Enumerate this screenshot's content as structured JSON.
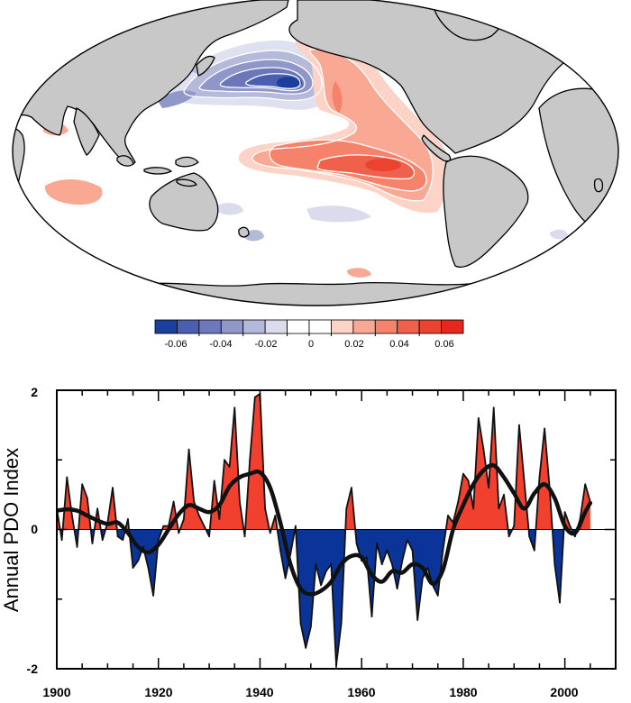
{
  "colors": {
    "positive": "#f2402f",
    "negative": "#0a3497",
    "land": "#c8c8c8",
    "line": "#111111"
  },
  "map": {
    "colorbar": {
      "ticks": [
        "-0.06",
        "-0.04",
        "-0.02",
        "0",
        "0.02",
        "0.04",
        "0.06"
      ],
      "colors": [
        "#1b3f9c",
        "#4b5fb0",
        "#6d79bb",
        "#9098c8",
        "#b4b8da",
        "#dadced",
        "#ffffff",
        "#ffffff",
        "#fcd3c6",
        "#f9a894",
        "#f5836c",
        "#f0614b",
        "#ec4331",
        "#e6271c"
      ]
    }
  },
  "chart_data": [
    {
      "type": "map",
      "title": "",
      "legend": "colorbar below map",
      "range": [
        -0.07,
        0.07
      ]
    },
    {
      "type": "area",
      "title": "",
      "xlabel": "",
      "ylabel": "Annual PDO Index",
      "xlim": [
        1900,
        2010
      ],
      "ylim": [
        -2,
        2
      ],
      "xticks": [
        "1900",
        "1920",
        "1940",
        "1960",
        "1980",
        "2000"
      ],
      "yticks": [
        "-2",
        "0",
        "2"
      ],
      "series": [
        {
          "name": "Annual PDO",
          "x": [
            1900,
            1901,
            1902,
            1903,
            1904,
            1905,
            1906,
            1907,
            1908,
            1909,
            1910,
            1911,
            1912,
            1913,
            1914,
            1915,
            1916,
            1917,
            1918,
            1919,
            1920,
            1921,
            1922,
            1923,
            1924,
            1925,
            1926,
            1927,
            1928,
            1929,
            1930,
            1931,
            1932,
            1933,
            1934,
            1935,
            1936,
            1937,
            1938,
            1939,
            1940,
            1941,
            1942,
            1943,
            1944,
            1945,
            1946,
            1947,
            1948,
            1949,
            1950,
            1951,
            1952,
            1953,
            1954,
            1955,
            1956,
            1957,
            1958,
            1959,
            1960,
            1961,
            1962,
            1963,
            1964,
            1965,
            1966,
            1967,
            1968,
            1969,
            1970,
            1971,
            1972,
            1973,
            1974,
            1975,
            1976,
            1977,
            1978,
            1979,
            1980,
            1981,
            1982,
            1983,
            1984,
            1985,
            1986,
            1987,
            1988,
            1989,
            1990,
            1991,
            1992,
            1993,
            1994,
            1995,
            1996,
            1997,
            1998,
            1999,
            2000,
            2001,
            2002,
            2003,
            2004,
            2005
          ],
          "values": [
            0.3,
            -0.15,
            0.75,
            0.2,
            -0.25,
            0.65,
            0.45,
            -0.2,
            0.3,
            -0.15,
            0.1,
            0.6,
            -0.1,
            -0.15,
            0.15,
            -0.55,
            -0.45,
            -0.25,
            -0.55,
            -0.95,
            -0.15,
            0.05,
            0.05,
            0.4,
            -0.05,
            0.15,
            1.15,
            0.4,
            0.2,
            0.05,
            -0.1,
            0.7,
            0.15,
            1.0,
            0.9,
            1.75,
            0.4,
            -0.1,
            1.0,
            1.9,
            1.95,
            0.3,
            -0.05,
            0.2,
            -0.3,
            -0.7,
            -0.35,
            0.05,
            -1.35,
            -1.7,
            -1.4,
            -0.5,
            -0.8,
            -0.6,
            -0.5,
            -1.95,
            -1.35,
            0.3,
            0.6,
            -0.2,
            -0.45,
            -0.4,
            -1.25,
            -0.2,
            -0.5,
            -0.3,
            -0.5,
            -0.85,
            -0.45,
            -0.15,
            -0.3,
            -1.3,
            -0.7,
            -0.55,
            -0.8,
            -0.95,
            -0.3,
            0.2,
            0.1,
            0.4,
            0.8,
            0.7,
            0.3,
            1.6,
            1.15,
            0.6,
            1.75,
            0.3,
            0.5,
            -0.1,
            0.05,
            1.5,
            0.7,
            -0.1,
            -0.3,
            0.75,
            1.45,
            0.6,
            -0.5,
            -1.05,
            0.25,
            0.05,
            -0.1,
            0.15,
            0.65,
            0.4
          ]
        },
        {
          "name": "Smoothed",
          "x": [
            1900,
            1902,
            1904,
            1906,
            1908,
            1910,
            1912,
            1914,
            1916,
            1918,
            1920,
            1922,
            1924,
            1926,
            1928,
            1930,
            1932,
            1934,
            1936,
            1938,
            1940,
            1942,
            1944,
            1946,
            1948,
            1950,
            1952,
            1954,
            1956,
            1958,
            1960,
            1962,
            1964,
            1966,
            1968,
            1970,
            1972,
            1974,
            1976,
            1978,
            1980,
            1982,
            1984,
            1986,
            1988,
            1990,
            1992,
            1994,
            1996,
            1998,
            2000,
            2002,
            2004,
            2005
          ],
          "values": [
            0.27,
            0.29,
            0.27,
            0.2,
            0.13,
            0.08,
            0.1,
            -0.05,
            -0.25,
            -0.33,
            -0.22,
            0.0,
            0.22,
            0.35,
            0.3,
            0.25,
            0.35,
            0.62,
            0.75,
            0.8,
            0.82,
            0.6,
            0.1,
            -0.5,
            -0.85,
            -0.93,
            -0.88,
            -0.75,
            -0.5,
            -0.38,
            -0.4,
            -0.65,
            -0.75,
            -0.6,
            -0.62,
            -0.5,
            -0.55,
            -0.78,
            -0.58,
            0.0,
            0.35,
            0.65,
            0.85,
            0.92,
            0.75,
            0.52,
            0.3,
            0.52,
            0.65,
            0.45,
            0.05,
            -0.05,
            0.25,
            0.38
          ]
        }
      ]
    }
  ]
}
